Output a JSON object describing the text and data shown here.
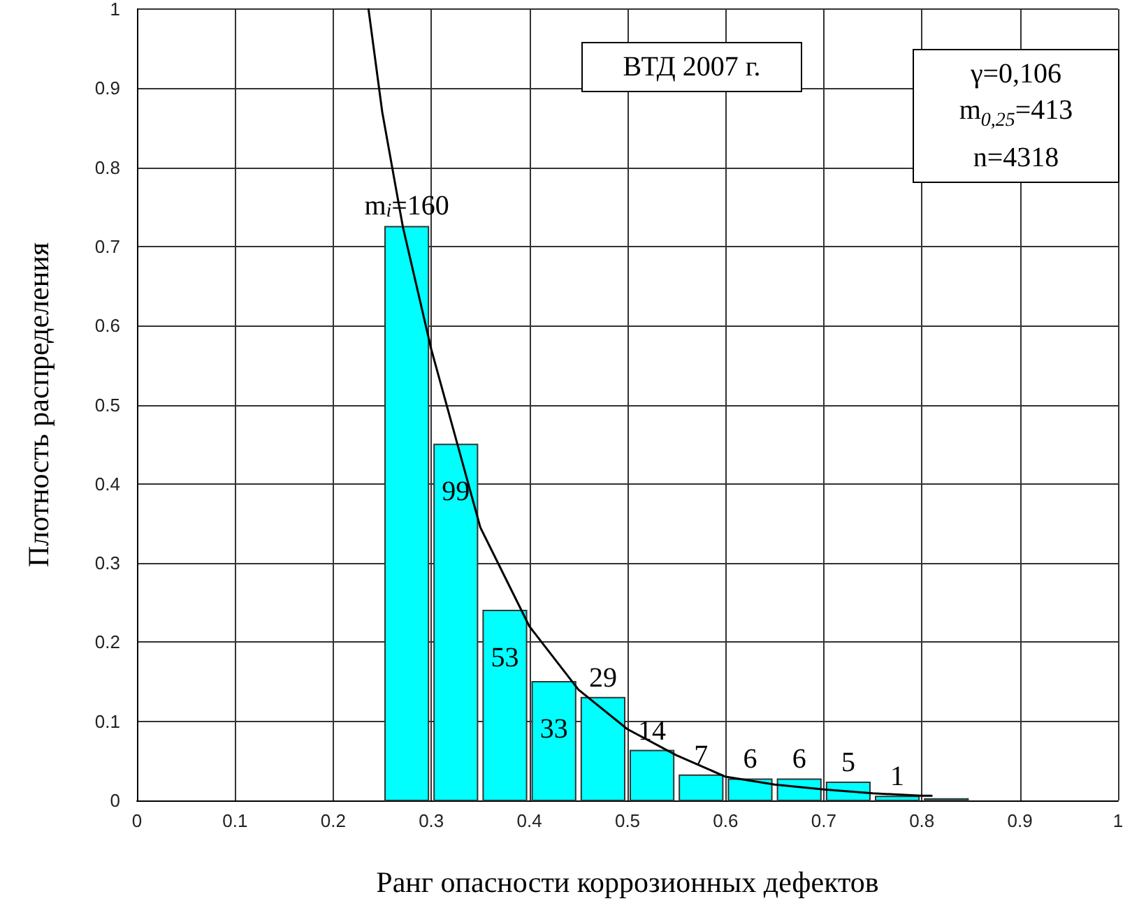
{
  "chart_data": {
    "type": "histogram",
    "xlabel": "Ранг опасности коррозионных дефектов",
    "ylabel": "Плотность распределения",
    "bins": [
      0.25,
      0.3,
      0.35,
      0.4,
      0.45,
      0.5,
      0.55,
      0.6,
      0.65,
      0.7,
      0.75,
      0.8,
      0.85
    ],
    "series": [
      {
        "color": "#00ffff",
        "values": [
          0.725,
          0.45,
          0.24,
          0.15,
          0.13,
          0.063,
          0.032,
          0.027,
          0.027,
          0.023,
          0.005,
          0.002
        ]
      },
      {
        "type": "line",
        "color": "#000000",
        "x": [
          0.236,
          0.25,
          0.271,
          0.3,
          0.35,
          0.4,
          0.45,
          0.5,
          0.55,
          0.6,
          0.65,
          0.7,
          0.75,
          0.8,
          0.81
        ],
        "values": [
          1,
          0.87,
          0.725,
          0.57,
          0.345,
          0.22,
          0.14,
          0.09,
          0.057,
          0.03,
          0.02,
          0.014,
          0.009,
          0.006,
          0.006
        ]
      }
    ],
    "annotations": [
      "ВТД 2007 г.",
      "γ=0,106",
      "m$_{0,25}$=413",
      "n=4318",
      {
        "text": "m$_{i}$=160",
        "x": 0.275,
        "y": 0.725
      },
      {
        "text": "99",
        "x": 0.325,
        "y": 0.45
      },
      {
        "text": "53",
        "x": 0.375,
        "y": 0.24
      },
      {
        "text": "33",
        "x": 0.425,
        "y": 0.15
      },
      {
        "text": "29",
        "x": 0.475,
        "y": 0.13
      },
      {
        "text": "14",
        "x": 0.525,
        "y": 0.063
      },
      {
        "text": "7",
        "x": 0.575,
        "y": 0.032
      },
      {
        "text": "6",
        "x": 0.625,
        "y": 0.027
      },
      {
        "text": "6",
        "x": 0.675,
        "y": 0.027
      },
      {
        "text": "5",
        "x": 0.725,
        "y": 0.023
      },
      {
        "text": "1",
        "x": 0.775,
        "y": 0.005
      }
    ],
    "xlim": [
      0,
      1
    ],
    "xticks": [
      0,
      0.1,
      0.2,
      0.3,
      0.4,
      0.5,
      0.6,
      0.7,
      0.8,
      0.9,
      1
    ],
    "ylim": [
      0,
      1
    ],
    "yticks": [
      0,
      0.1,
      0.2,
      0.3,
      0.4,
      0.5,
      0.6,
      0.7,
      0.8,
      0.9,
      1
    ],
    "grid": true,
    "marker": "none",
    "line_style": "solid"
  }
}
